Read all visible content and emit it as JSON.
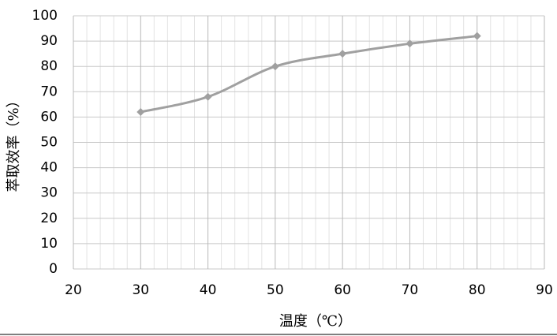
{
  "chart_data": {
    "type": "line",
    "x_label": "温度（℃）",
    "y_label": "萃取效率（%）",
    "x": [
      30,
      40,
      50,
      60,
      70,
      80
    ],
    "series": [
      {
        "name": "萃取效率",
        "color": "#a0a0a0",
        "values": [
          62,
          68,
          80,
          85,
          89,
          92
        ]
      }
    ],
    "xlim": [
      20,
      90
    ],
    "xticks": [
      20,
      30,
      40,
      50,
      60,
      70,
      80,
      90
    ],
    "ylim": [
      0,
      100
    ],
    "yticks": [
      0,
      10,
      20,
      30,
      40,
      50,
      60,
      70,
      80,
      90,
      100
    ],
    "grid": true,
    "minor_x_grid": true,
    "smooth": true
  }
}
